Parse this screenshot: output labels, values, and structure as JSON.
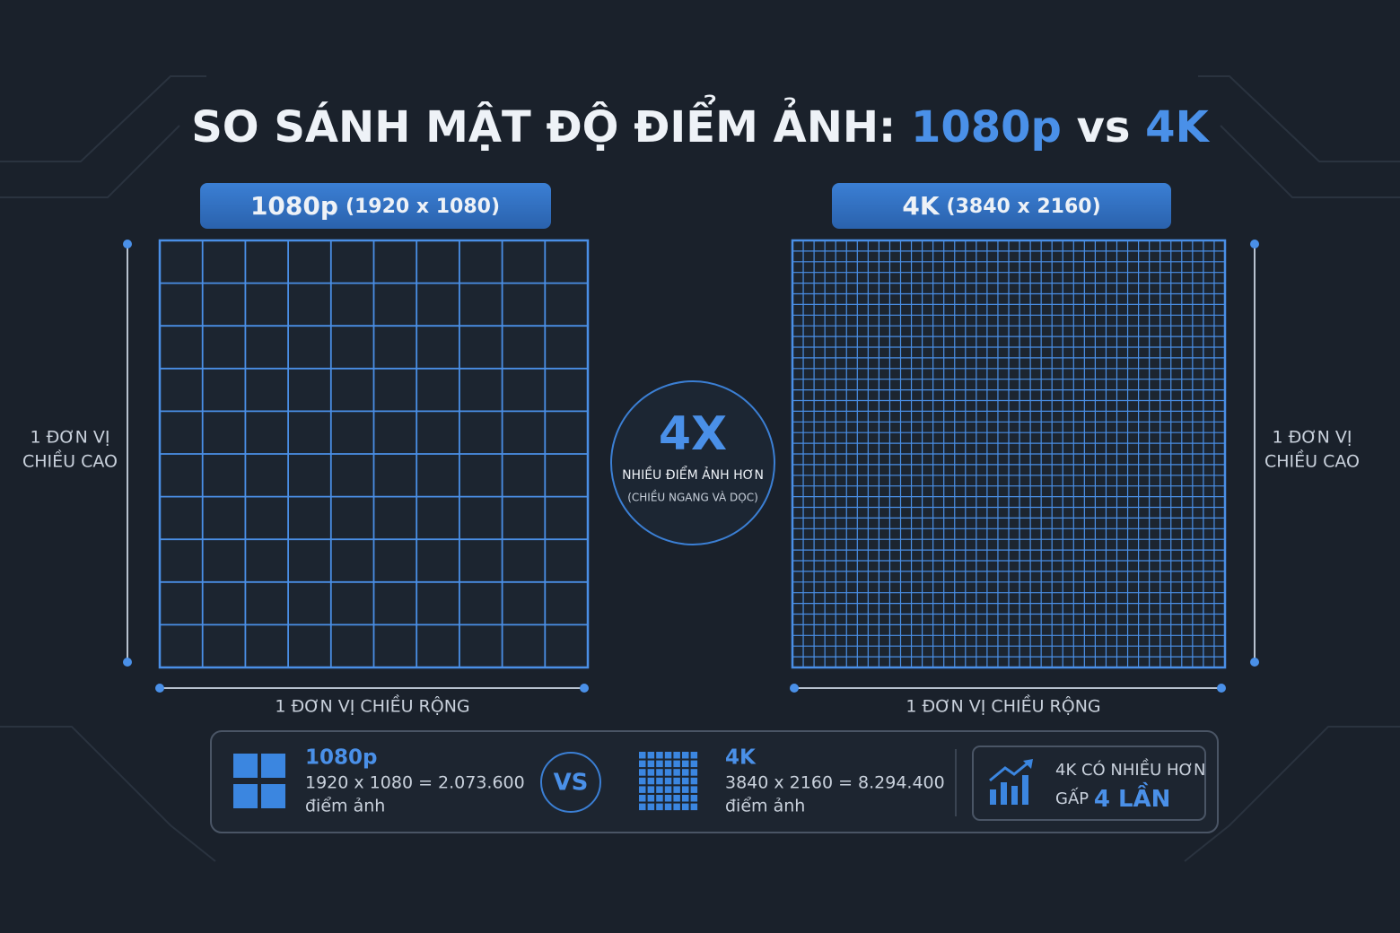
{
  "title": {
    "part1": "SO SÁNH MẬT ĐỘ ĐIỂM ẢNH: ",
    "part2": "1080p",
    "part3": " vs ",
    "part4": "4K"
  },
  "left": {
    "badge_name": "1080p",
    "badge_res": "(1920 x 1080)",
    "height_label": [
      "1 ĐƠN VỊ",
      "CHIỀU CAO"
    ],
    "width_label": "1 ĐƠN VỊ CHIỀU RỘNG"
  },
  "right": {
    "badge_name": "4K",
    "badge_res": "(3840 x 2160)",
    "height_label": [
      "1 ĐƠN VỊ",
      "CHIỀU CAO"
    ],
    "width_label": "1 ĐƠN VỊ CHIỀU RỘNG"
  },
  "center": {
    "big": "4X",
    "line1": "NHIỀU ĐIỂM ẢNH HƠN",
    "line2": "(CHIỀU NGANG VÀ DỌC)"
  },
  "summary": {
    "left": {
      "name": "1080p",
      "formula": "1920 x 1080 = 2.073.600",
      "unit": "điểm ảnh"
    },
    "vs": "VS",
    "right": {
      "name": "4K",
      "formula": "3840 x 2160 = 8.294.400",
      "unit": "điểm ảnh"
    },
    "result": {
      "line1": "4K CÓ NHIỀU HƠN",
      "line2a": "GẤP ",
      "line2b": "4 LẦN"
    }
  }
}
